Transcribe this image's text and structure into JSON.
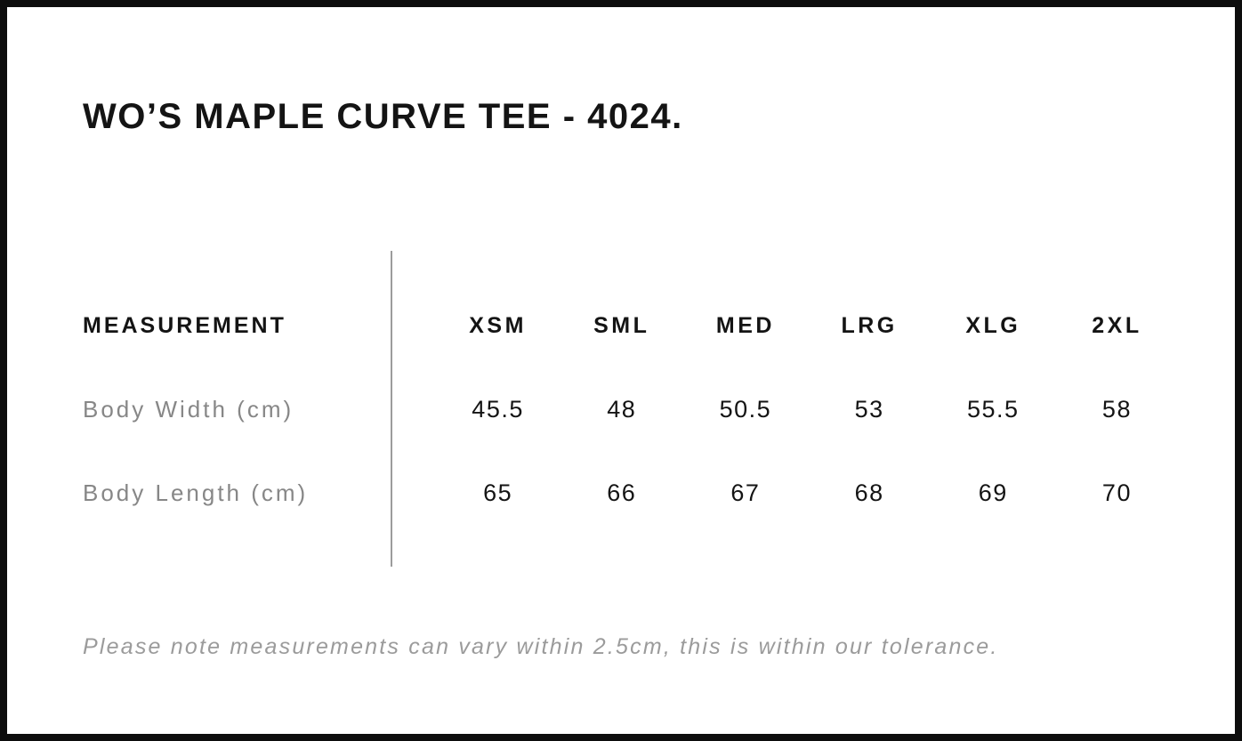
{
  "page": {
    "title": "WO’S MAPLE CURVE TEE - 4024.",
    "footnote": "Please note measurements can vary within 2.5cm, this is within our tolerance."
  },
  "size_chart": {
    "measurement_header": "MEASUREMENT",
    "sizes": [
      "XSM",
      "SML",
      "MED",
      "LRG",
      "XLG",
      "2XL"
    ],
    "rows": [
      {
        "label": "Body Width (cm)",
        "values": [
          "45.5",
          "48",
          "50.5",
          "53",
          "55.5",
          "58"
        ]
      },
      {
        "label": "Body Length (cm)",
        "values": [
          "65",
          "66",
          "67",
          "68",
          "69",
          "70"
        ]
      }
    ]
  },
  "chart_data": {
    "type": "table",
    "title": "WO’S MAPLE CURVE TEE - 4024.",
    "columns": [
      "MEASUREMENT",
      "XSM",
      "SML",
      "MED",
      "LRG",
      "XLG",
      "2XL"
    ],
    "rows": [
      [
        "Body Width (cm)",
        45.5,
        48,
        50.5,
        53,
        55.5,
        58
      ],
      [
        "Body Length (cm)",
        65,
        66,
        67,
        68,
        69,
        70
      ]
    ],
    "note": "Please note measurements can vary within 2.5cm, this is within our tolerance."
  },
  "colors": {
    "border": "#0d0d0d",
    "text_primary": "#141414",
    "label_gray": "#878787",
    "note_gray": "#9b9b9b",
    "divider_gray": "#9c9c9c",
    "background": "#ffffff"
  }
}
